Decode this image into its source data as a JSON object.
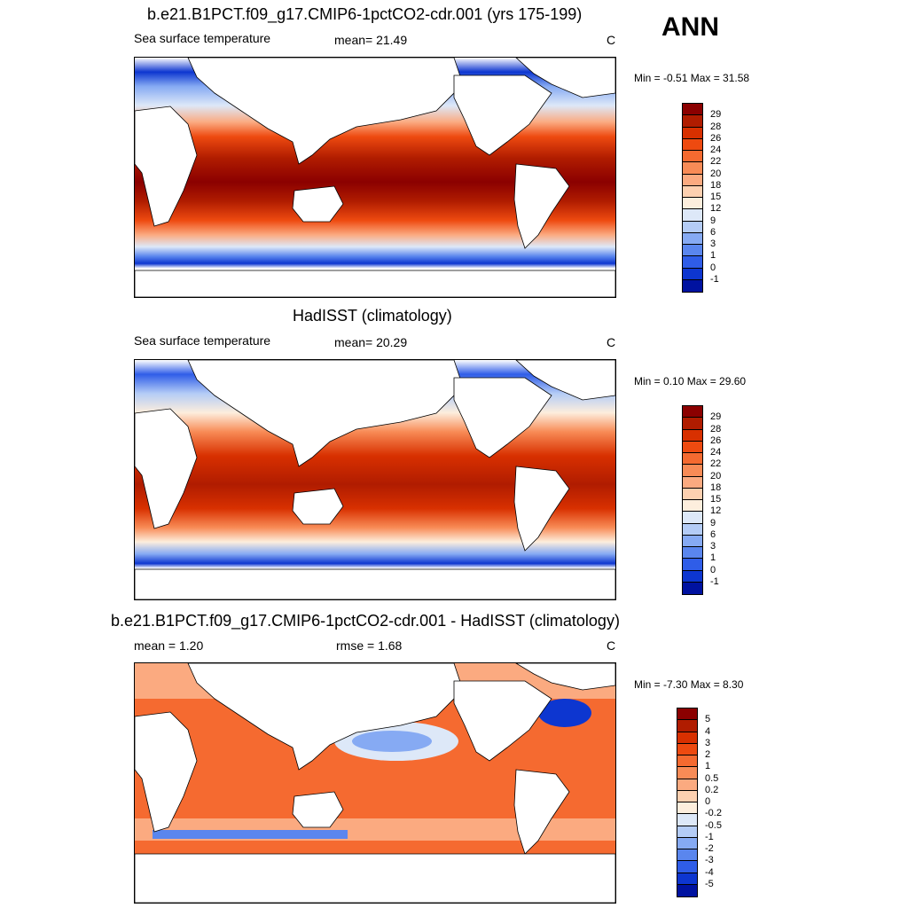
{
  "season": "ANN",
  "panels": [
    {
      "title": "b.e21.B1PCT.f09_g17.CMIP6-1pctCO2-cdr.001 (yrs 175-199)",
      "left_label": "Sea surface temperature",
      "mid_label": "mean=  21.49",
      "units": "C",
      "minmax": "Min =  -0.51 Max =  31.58"
    },
    {
      "title": "HadISST (climatology)",
      "left_label": "Sea surface temperature",
      "mid_label": "mean=  20.29",
      "units": "C",
      "minmax": "Min =   0.10 Max =  29.60"
    },
    {
      "title": "b.e21.B1PCT.f09_g17.CMIP6-1pctCO2-cdr.001 - HadISST (climatology)",
      "left_label": "mean =   1.20",
      "mid_label": "rmse =   1.68",
      "units": "C",
      "minmax": "Min =  -7.30 Max =   8.30"
    }
  ],
  "colorbars": {
    "sst": {
      "levels": [
        "29",
        "28",
        "26",
        "24",
        "22",
        "20",
        "18",
        "15",
        "12",
        "9",
        "6",
        "3",
        "1",
        "0",
        "-1"
      ],
      "colors": [
        "#8b0000",
        "#b01c00",
        "#d83000",
        "#ee4a10",
        "#f56a30",
        "#f88b56",
        "#fbaa80",
        "#fdd0b0",
        "#fdeedd",
        "#dde8f8",
        "#b4ccf6",
        "#86aaf3",
        "#5a86ee",
        "#2f5de8",
        "#0d36d0",
        "#0012a0"
      ]
    },
    "diff": {
      "levels": [
        "5",
        "4",
        "3",
        "2",
        "1",
        "0.5",
        "0.2",
        "0",
        "-0.2",
        "-0.5",
        "-1",
        "-2",
        "-3",
        "-4",
        "-5"
      ],
      "colors": [
        "#8b0000",
        "#b01c00",
        "#d83000",
        "#ee4a10",
        "#f56a30",
        "#f88b56",
        "#fbaa80",
        "#fdd0b0",
        "#fdeedd",
        "#dde8f8",
        "#b4ccf6",
        "#86aaf3",
        "#5a86ee",
        "#2f5de8",
        "#0d36d0",
        "#0012a0"
      ]
    }
  },
  "map_data": {
    "projection": "cylindrical-equidistant",
    "central_longitude": 180,
    "fields": [
      "model SST",
      "observed SST",
      "model minus observed SST"
    ]
  }
}
